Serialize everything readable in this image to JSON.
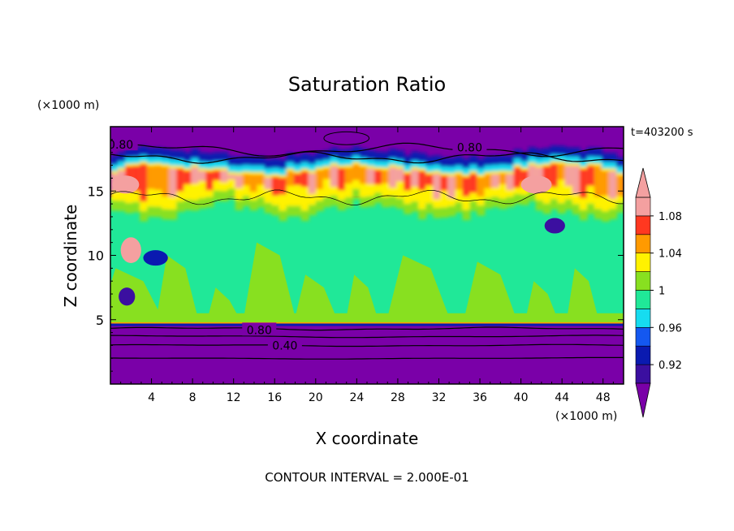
{
  "chart_data": {
    "type": "heatmap",
    "title": "Saturation Ratio",
    "xlabel": "X coordinate",
    "ylabel": "Z coordinate",
    "x_unit": "(×1000 m)",
    "y_unit": "(×1000 m)",
    "time_label": "t=403200 s",
    "footer": "CONTOUR INTERVAL = 2.000E-01",
    "xlim": [
      0,
      50
    ],
    "ylim": [
      0,
      20
    ],
    "x_ticks": [
      4,
      8,
      12,
      16,
      20,
      24,
      28,
      32,
      36,
      40,
      44,
      48
    ],
    "y_ticks": [
      5,
      10,
      15
    ],
    "colorbar": {
      "levels": [
        0.92,
        0.94,
        0.96,
        0.98,
        1.0,
        1.02,
        1.04,
        1.06,
        1.08,
        1.1
      ],
      "tick_labels": [
        "0.92",
        "0.96",
        "1",
        "1.04",
        "1.08"
      ],
      "colors": [
        "#3b0fa0",
        "#0a1ab0",
        "#1458f0",
        "#16dcf0",
        "#20e898",
        "#88e020",
        "#fff200",
        "#ff9a00",
        "#ff3820",
        "#f4a0a0"
      ],
      "under_color": "#7a00a8",
      "over_color": "#f4a0a0"
    },
    "contour_labels": [
      "0.80",
      "0.80",
      "0.80",
      "0.40"
    ],
    "fields": {
      "dry_below_z": 4.7,
      "moist_layer_z": [
        4.7,
        14.5
      ],
      "supersaturated_band_z": [
        14.5,
        17.0
      ],
      "dry_above_z": 17.5
    },
    "annotations": [
      {
        "text": "0.80",
        "x": 1.0,
        "y": 18.6
      },
      {
        "text": "0.80",
        "x": 35.0,
        "y": 18.4
      },
      {
        "text": "0.80",
        "x": 14.5,
        "y": 4.2
      },
      {
        "text": "0.40",
        "x": 17.0,
        "y": 3.0
      }
    ]
  }
}
